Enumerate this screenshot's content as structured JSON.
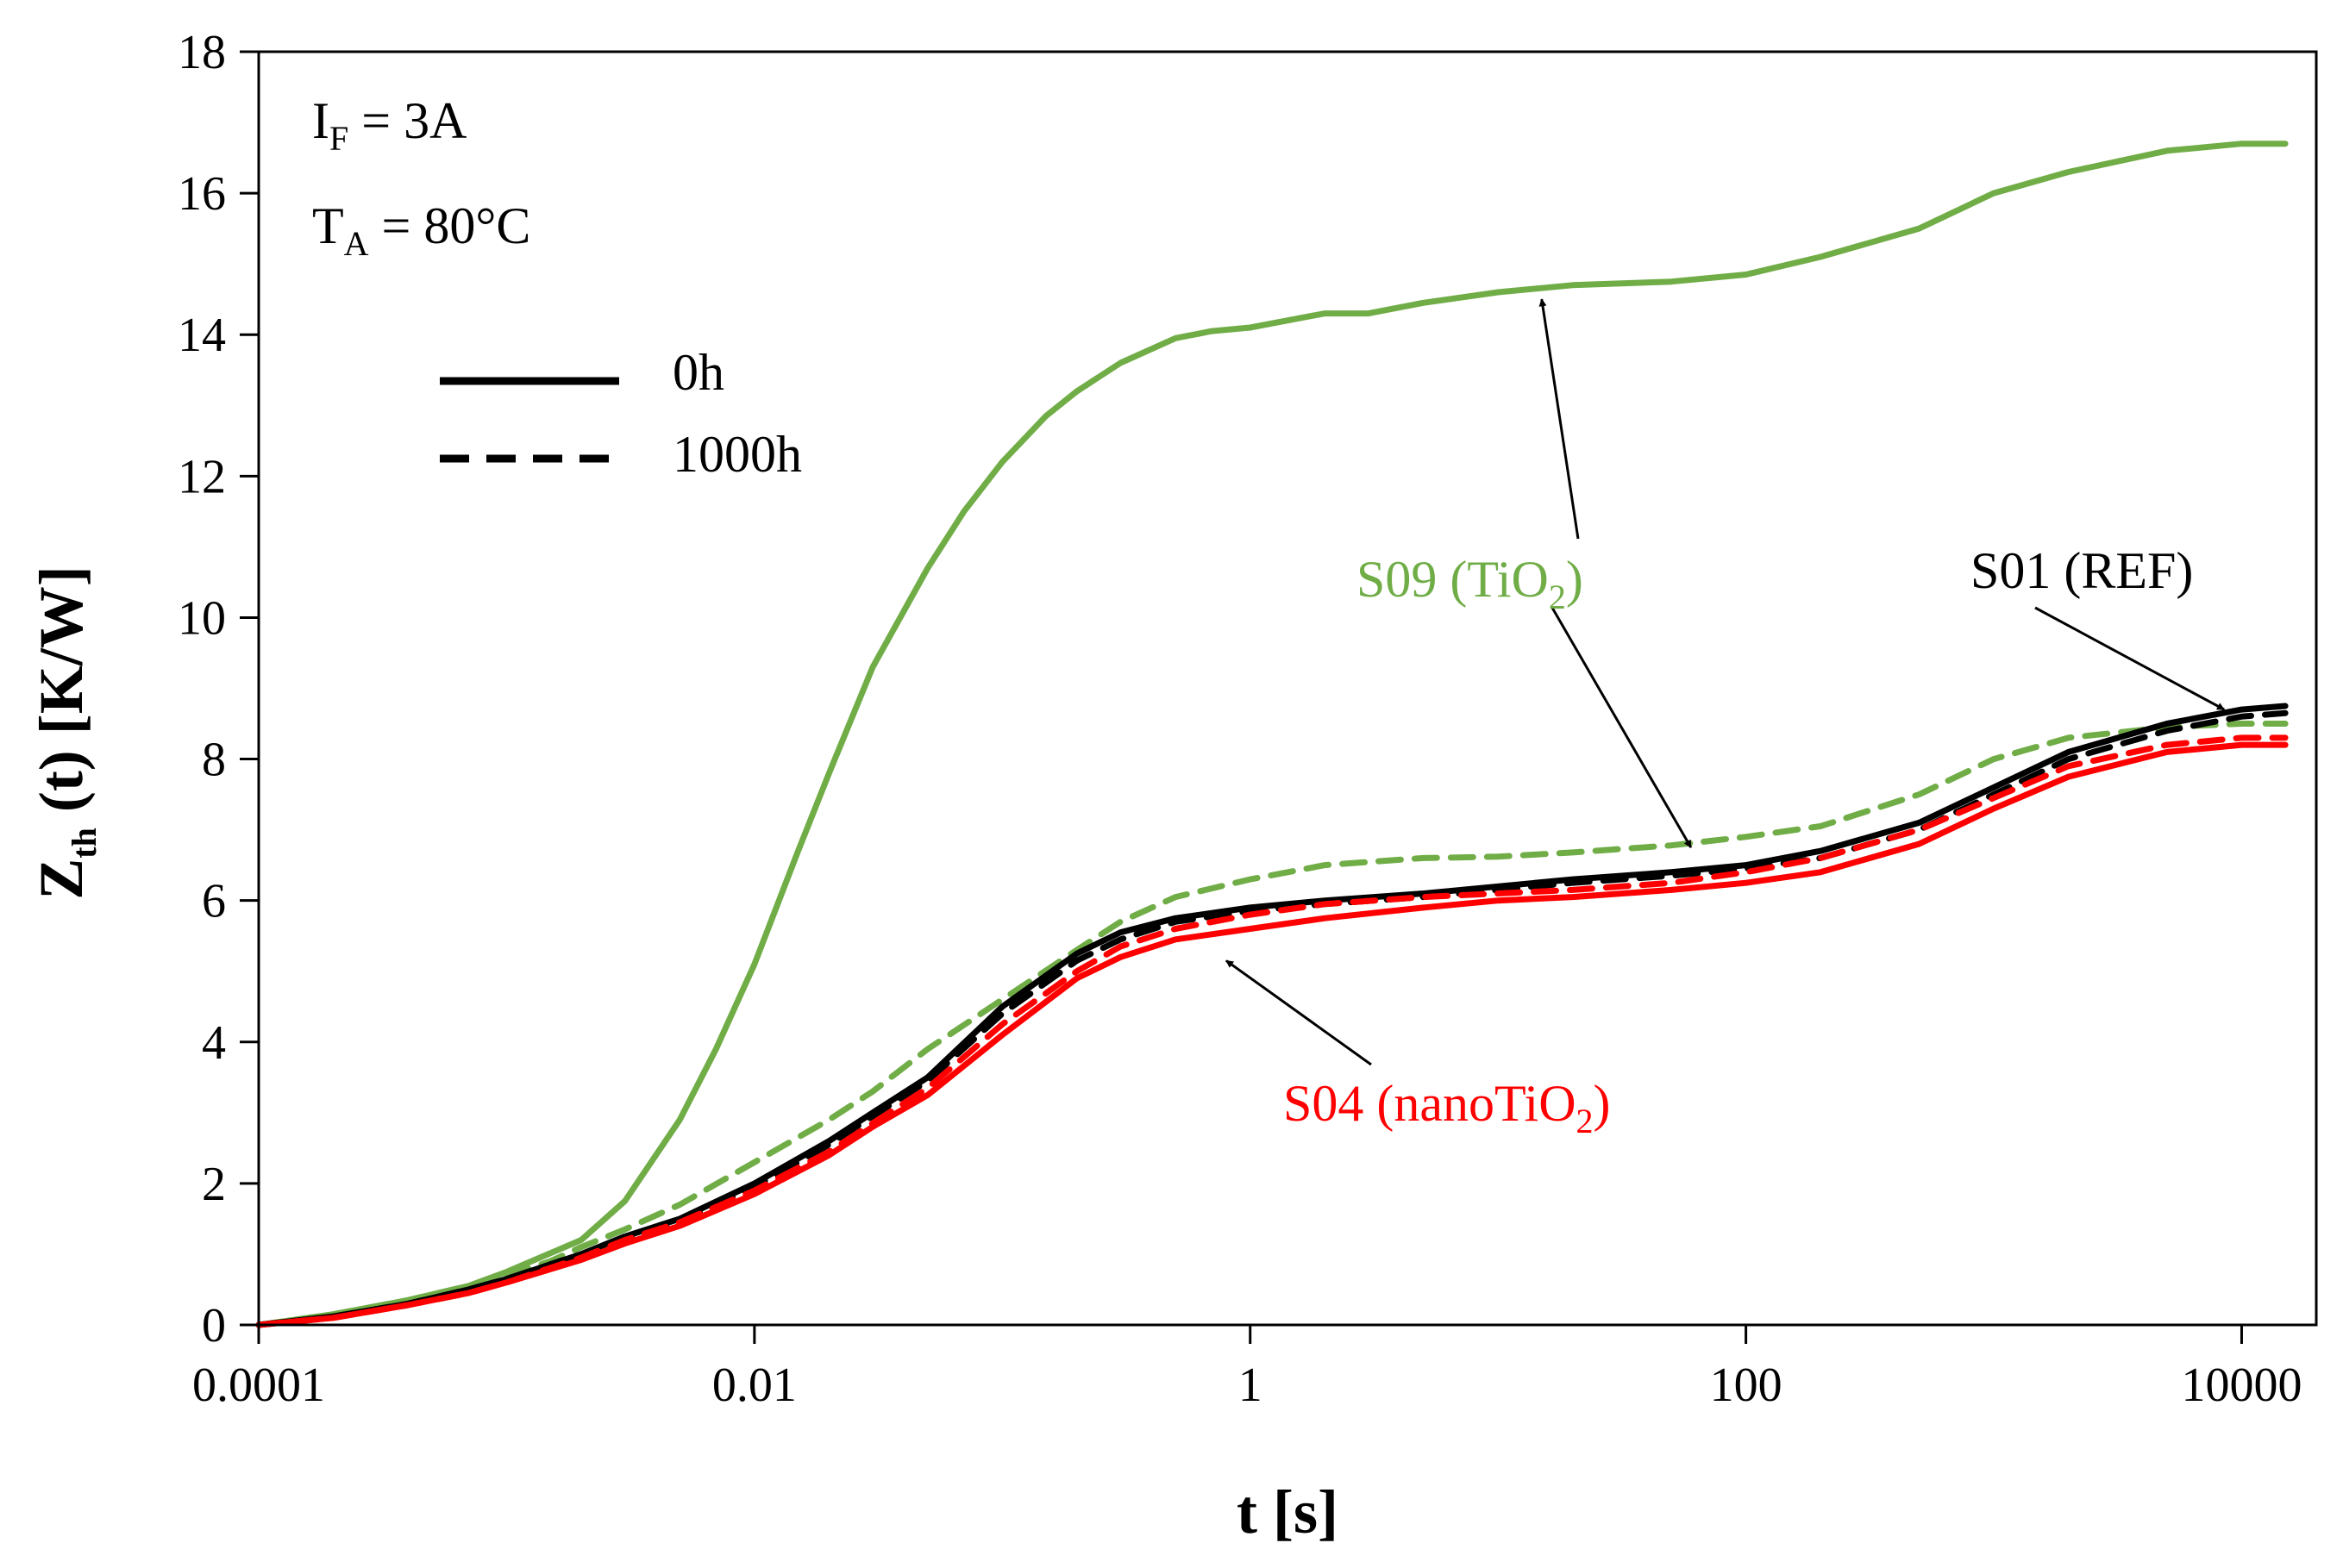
{
  "colors": {
    "axis": "#000000",
    "ref": "#000000",
    "tio2": "#70ad47",
    "nanotio2": "#ff0000"
  },
  "chart_data": {
    "type": "line",
    "xscale": "log",
    "xlim": [
      0.0001,
      20000
    ],
    "ylim": [
      0,
      18
    ],
    "xticks": [
      0.0001,
      0.01,
      1,
      100,
      10000
    ],
    "xtick_labels": [
      "0.0001",
      "0.01",
      "1",
      "100",
      "10000"
    ],
    "yticks": [
      0,
      2,
      4,
      6,
      8,
      10,
      12,
      14,
      16,
      18
    ],
    "ytick_labels": [
      "0",
      "2",
      "4",
      "6",
      "8",
      "10",
      "12",
      "14",
      "16",
      "18"
    ],
    "xlabel": "t [s]",
    "ylabel": {
      "main": "Z",
      "sub": "th",
      "rest": " (t) [K/W]"
    },
    "conditions": [
      {
        "main": "I",
        "sub": "F",
        "rest": " = 3A"
      },
      {
        "main": "T",
        "sub": "A",
        "rest": " = 80°C"
      }
    ],
    "legend": {
      "placement": "top-left",
      "entries": [
        {
          "label": "0h",
          "style": "solid"
        },
        {
          "label": "1000h",
          "style": "dashed"
        }
      ]
    },
    "annotations": [
      {
        "text": "S09 (TiO",
        "sub": "2",
        "after": ")",
        "color": "tio2",
        "points_to": [
          [
            15,
            14.5
          ],
          [
            60,
            6.75
          ]
        ]
      },
      {
        "text": "S01 (REF)",
        "sub": "",
        "after": "",
        "color": "ref",
        "points_to": [
          [
            8500,
            8.7
          ]
        ]
      },
      {
        "text": "S04 (nanoTiO",
        "sub": "2",
        "after": ")",
        "color": "nanotio2",
        "points_to": [
          [
            0.8,
            5.15
          ]
        ]
      }
    ],
    "series": [
      {
        "name": "S09 (TiO2) 0h",
        "color": "tio2",
        "style": "solid",
        "x": [
          0.0001,
          0.0002,
          0.0004,
          0.0007,
          0.001,
          0.002,
          0.003,
          0.005,
          0.007,
          0.01,
          0.015,
          0.02,
          0.03,
          0.05,
          0.07,
          0.1,
          0.15,
          0.2,
          0.3,
          0.5,
          0.7,
          1,
          2,
          3,
          5,
          10,
          20,
          50,
          100,
          200,
          500,
          1000,
          2000,
          5000,
          10000,
          15000
        ],
        "y": [
          0.0,
          0.15,
          0.35,
          0.55,
          0.75,
          1.2,
          1.75,
          2.9,
          3.9,
          5.1,
          6.7,
          7.8,
          9.3,
          10.7,
          11.5,
          12.2,
          12.85,
          13.2,
          13.6,
          13.95,
          14.05,
          14.1,
          14.3,
          14.3,
          14.45,
          14.6,
          14.7,
          14.75,
          14.85,
          15.1,
          15.5,
          16.0,
          16.3,
          16.6,
          16.7,
          16.7
        ]
      },
      {
        "name": "S09 (TiO2) 1000h",
        "color": "tio2",
        "style": "dashed",
        "x": [
          0.0001,
          0.0002,
          0.0004,
          0.0007,
          0.001,
          0.0015,
          0.002,
          0.003,
          0.005,
          0.01,
          0.02,
          0.03,
          0.05,
          0.1,
          0.2,
          0.3,
          0.5,
          1,
          2,
          5,
          10,
          20,
          50,
          100,
          200,
          500,
          1000,
          2000,
          5000,
          10000,
          15000
        ],
        "y": [
          0.0,
          0.15,
          0.35,
          0.55,
          0.7,
          0.9,
          1.1,
          1.35,
          1.7,
          2.3,
          2.9,
          3.3,
          3.9,
          4.6,
          5.3,
          5.7,
          6.05,
          6.3,
          6.5,
          6.6,
          6.62,
          6.68,
          6.78,
          6.9,
          7.05,
          7.5,
          8.0,
          8.3,
          8.45,
          8.5,
          8.5
        ]
      },
      {
        "name": "S01 (REF) 0h",
        "color": "ref",
        "style": "solid",
        "x": [
          0.0001,
          0.0002,
          0.0004,
          0.0007,
          0.001,
          0.002,
          0.003,
          0.005,
          0.01,
          0.02,
          0.03,
          0.05,
          0.1,
          0.2,
          0.3,
          0.5,
          1,
          2,
          5,
          10,
          20,
          50,
          100,
          200,
          500,
          1000,
          2000,
          5000,
          10000,
          15000
        ],
        "y": [
          0.0,
          0.12,
          0.3,
          0.5,
          0.65,
          1.0,
          1.25,
          1.5,
          2.0,
          2.6,
          3.0,
          3.5,
          4.5,
          5.25,
          5.55,
          5.75,
          5.9,
          6.0,
          6.1,
          6.2,
          6.3,
          6.4,
          6.5,
          6.7,
          7.1,
          7.6,
          8.1,
          8.5,
          8.7,
          8.75
        ]
      },
      {
        "name": "S01 (REF) 1000h",
        "color": "ref",
        "style": "dashed",
        "x": [
          0.0001,
          0.0002,
          0.0004,
          0.0007,
          0.001,
          0.002,
          0.003,
          0.005,
          0.01,
          0.02,
          0.03,
          0.05,
          0.1,
          0.2,
          0.3,
          0.5,
          1,
          2,
          5,
          10,
          20,
          50,
          100,
          200,
          500,
          1000,
          2000,
          5000,
          10000,
          15000
        ],
        "y": [
          0.0,
          0.12,
          0.3,
          0.5,
          0.65,
          1.0,
          1.2,
          1.45,
          1.95,
          2.55,
          2.95,
          3.45,
          4.4,
          5.15,
          5.45,
          5.7,
          5.85,
          5.95,
          6.05,
          6.15,
          6.25,
          6.35,
          6.45,
          6.6,
          7.0,
          7.5,
          8.0,
          8.4,
          8.6,
          8.65
        ]
      },
      {
        "name": "S04 (nanoTiO2) 0h",
        "color": "nanotio2",
        "style": "solid",
        "x": [
          0.0001,
          0.0002,
          0.0004,
          0.0007,
          0.001,
          0.002,
          0.003,
          0.005,
          0.01,
          0.02,
          0.03,
          0.05,
          0.1,
          0.2,
          0.3,
          0.5,
          1,
          2,
          5,
          10,
          20,
          50,
          100,
          200,
          500,
          1000,
          2000,
          5000,
          10000,
          15000
        ],
        "y": [
          0.0,
          0.1,
          0.28,
          0.45,
          0.6,
          0.92,
          1.15,
          1.4,
          1.85,
          2.4,
          2.8,
          3.25,
          4.1,
          4.9,
          5.2,
          5.45,
          5.6,
          5.75,
          5.9,
          6.0,
          6.05,
          6.15,
          6.25,
          6.4,
          6.8,
          7.3,
          7.75,
          8.1,
          8.2,
          8.2
        ]
      },
      {
        "name": "S04 (nanoTiO2) 1000h",
        "color": "nanotio2",
        "style": "dashed",
        "x": [
          0.0001,
          0.0002,
          0.0004,
          0.0007,
          0.001,
          0.002,
          0.003,
          0.005,
          0.01,
          0.02,
          0.03,
          0.05,
          0.1,
          0.2,
          0.3,
          0.5,
          1,
          2,
          5,
          10,
          20,
          50,
          100,
          200,
          500,
          1000,
          2000,
          5000,
          10000,
          15000
        ],
        "y": [
          0.0,
          0.1,
          0.28,
          0.45,
          0.6,
          0.95,
          1.2,
          1.45,
          1.9,
          2.45,
          2.85,
          3.35,
          4.25,
          5.0,
          5.35,
          5.6,
          5.8,
          5.95,
          6.05,
          6.1,
          6.15,
          6.25,
          6.4,
          6.6,
          7.0,
          7.45,
          7.9,
          8.2,
          8.3,
          8.3
        ]
      }
    ]
  }
}
